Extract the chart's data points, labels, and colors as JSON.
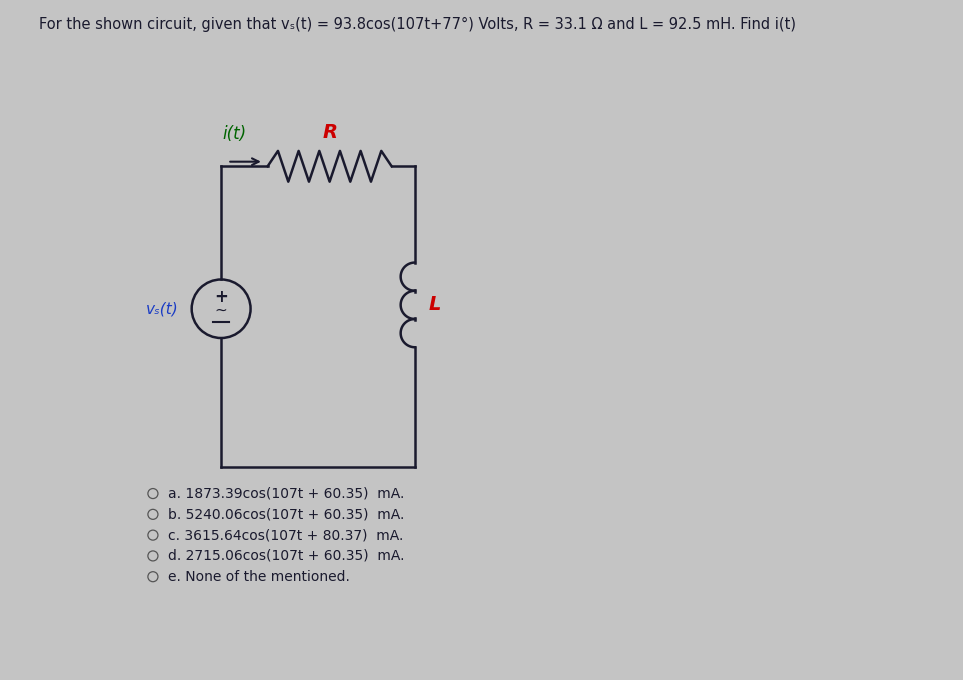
{
  "title": "For the shown circuit, given that vₛ(t) = 93.8cos(107t+77°) Volts, R = 33.1 Ω and L = 92.5 mH. Find i(t)",
  "title_fontsize": 10.5,
  "bg_color": "#c4c4c4",
  "circuit_color": "#1a1a2e",
  "options": [
    "a. 1873.39cos(107t + 60.35)  mA.",
    "b. 5240.06cos(107t + 60.35)  mA.",
    "c. 3615.64cos(107t + 80.37)  mA.",
    "d. 2715.06cos(107t + 60.35)  mA.",
    "e. None of the mentioned."
  ],
  "options_fontsize": 10.0,
  "it_label": "i(t)",
  "R_label": "R",
  "L_label": "L",
  "vs_label": "vₛ(t)",
  "label_color_red": "#cc0000",
  "label_color_green": "#006400",
  "label_color_blue": "#1a3cc4",
  "label_color_dark": "#1a1a2e"
}
